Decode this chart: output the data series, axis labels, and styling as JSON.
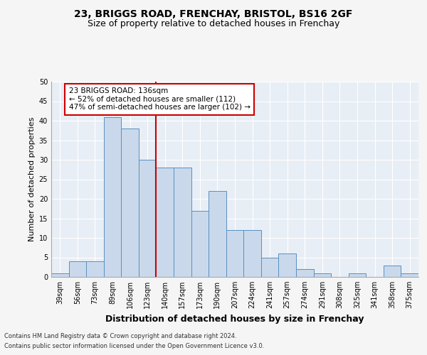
{
  "title_line1": "23, BRIGGS ROAD, FRENCHAY, BRISTOL, BS16 2GF",
  "title_line2": "Size of property relative to detached houses in Frenchay",
  "xlabel": "Distribution of detached houses by size in Frenchay",
  "ylabel": "Number of detached properties",
  "footnote1": "Contains HM Land Registry data © Crown copyright and database right 2024.",
  "footnote2": "Contains public sector information licensed under the Open Government Licence v3.0.",
  "categories": [
    "39sqm",
    "56sqm",
    "73sqm",
    "89sqm",
    "106sqm",
    "123sqm",
    "140sqm",
    "157sqm",
    "173sqm",
    "190sqm",
    "207sqm",
    "224sqm",
    "241sqm",
    "257sqm",
    "274sqm",
    "291sqm",
    "308sqm",
    "325sqm",
    "341sqm",
    "358sqm",
    "375sqm"
  ],
  "values": [
    1,
    4,
    4,
    41,
    38,
    30,
    28,
    28,
    17,
    22,
    12,
    12,
    5,
    6,
    2,
    1,
    0,
    1,
    0,
    3,
    1
  ],
  "bar_color": "#c9d9eb",
  "bar_edge_color": "#5a8fc0",
  "vline_x_index": 6,
  "vline_color": "#cc0000",
  "annotation_text": "23 BRIGGS ROAD: 136sqm\n← 52% of detached houses are smaller (112)\n47% of semi-detached houses are larger (102) →",
  "annotation_box_color": "#ffffff",
  "annotation_box_edge": "#cc0000",
  "ylim": [
    0,
    50
  ],
  "yticks": [
    0,
    5,
    10,
    15,
    20,
    25,
    30,
    35,
    40,
    45,
    50
  ],
  "background_color": "#e8eef5",
  "grid_color": "#ffffff",
  "title_fontsize": 10,
  "subtitle_fontsize": 9,
  "tick_fontsize": 7,
  "ylabel_fontsize": 8,
  "xlabel_fontsize": 9,
  "footnote_fontsize": 6
}
